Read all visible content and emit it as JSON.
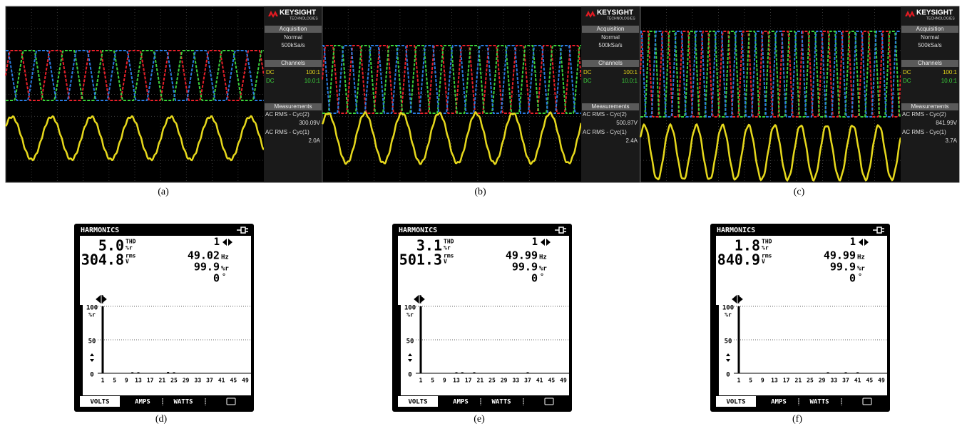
{
  "scopes": [
    {
      "brand": "KEYSIGHT",
      "brand_sub": "TECHNOLOGIES",
      "acquisition": "Acquisition",
      "mode": "Normal",
      "rate": "500kSa/s",
      "channels": "Channels",
      "ch1_coupling": "DC",
      "ch1_probe": "100:1",
      "ch2_coupling": "DC",
      "ch2_probe": "10.0:1",
      "measurements": "Measurements",
      "m1_label": "AC RMS - Cyc(2)",
      "m1_value": "300.09V",
      "m2_label": "AC RMS - Cyc(1)",
      "m2_value": "2.0A",
      "caption": "(a)"
    },
    {
      "brand": "KEYSIGHT",
      "brand_sub": "TECHNOLOGIES",
      "acquisition": "Acquisition",
      "mode": "Normal",
      "rate": "500kSa/s",
      "channels": "Channels",
      "ch1_coupling": "DC",
      "ch1_probe": "100:1",
      "ch2_coupling": "DC",
      "ch2_probe": "10.0:1",
      "measurements": "Measurements",
      "m1_label": "AC RMS - Cyc(2)",
      "m1_value": "500.87V",
      "m2_label": "AC RMS - Cyc(1)",
      "m2_value": "2.4A",
      "caption": "(b)"
    },
    {
      "brand": "KEYSIGHT",
      "brand_sub": "TECHNOLOGIES",
      "acquisition": "Acquisition",
      "mode": "Normal",
      "rate": "500kSa/s",
      "channels": "Channels",
      "ch1_coupling": "DC",
      "ch1_probe": "100:1",
      "ch2_coupling": "DC",
      "ch2_probe": "10.0:1",
      "measurements": "Measurements",
      "m1_label": "AC RMS - Cyc(2)",
      "m1_value": "841.99V",
      "m2_label": "AC RMS - Cyc(1)",
      "m2_value": "3.7A",
      "caption": "(c)"
    }
  ],
  "analyzers": [
    {
      "title": "HARMONICS",
      "thd": "5.0",
      "thd_label": "THD",
      "thd_unit": "%r",
      "rms": "304.8",
      "rms_label": "rms",
      "rms_unit": "V",
      "harmonic": "1",
      "freq": "49.02",
      "freq_unit": "Hz",
      "pct": "99.9",
      "pct_unit": "%r",
      "phase": "0",
      "phase_unit": "°",
      "y_unit": "%r",
      "ylim": [
        0,
        100
      ],
      "y_ticks": [
        0,
        50,
        100
      ],
      "xlim": [
        1,
        49
      ],
      "x_ticks": [
        1,
        5,
        9,
        13,
        17,
        21,
        25,
        29,
        33,
        37,
        41,
        45,
        49
      ],
      "bars": [
        {
          "h": 1,
          "v": 100
        },
        {
          "h": 11,
          "v": 1
        },
        {
          "h": 13,
          "v": 1
        },
        {
          "h": 23,
          "v": 2
        },
        {
          "h": 25,
          "v": 1
        }
      ],
      "tabs": [
        "VOLTS",
        "AMPS",
        "WATTS"
      ],
      "caption": "(d)"
    },
    {
      "title": "HARMONICS",
      "thd": "3.1",
      "thd_label": "THD",
      "thd_unit": "%r",
      "rms": "501.3",
      "rms_label": "rms",
      "rms_unit": "V",
      "harmonic": "1",
      "freq": "49.99",
      "freq_unit": "Hz",
      "pct": "99.9",
      "pct_unit": "%r",
      "phase": "0",
      "phase_unit": "°",
      "y_unit": "%r",
      "ylim": [
        0,
        100
      ],
      "y_ticks": [
        0,
        50,
        100
      ],
      "xlim": [
        1,
        49
      ],
      "x_ticks": [
        1,
        5,
        9,
        13,
        17,
        21,
        25,
        29,
        33,
        37,
        41,
        45,
        49
      ],
      "bars": [
        {
          "h": 1,
          "v": 100
        },
        {
          "h": 13,
          "v": 1.5
        },
        {
          "h": 15,
          "v": 1
        },
        {
          "h": 19,
          "v": 0.5
        },
        {
          "h": 37,
          "v": 0.5
        }
      ],
      "tabs": [
        "VOLTS",
        "AMPS",
        "WATTS"
      ],
      "caption": "(e)"
    },
    {
      "title": "HARMONICS",
      "thd": "1.8",
      "thd_label": "THD",
      "thd_unit": "%r",
      "rms": "840.9",
      "rms_label": "rms",
      "rms_unit": "V",
      "harmonic": "1",
      "freq": "49.99",
      "freq_unit": "Hz",
      "pct": "99.9",
      "pct_unit": "%r",
      "phase": "0",
      "phase_unit": "°",
      "y_unit": "%r",
      "ylim": [
        0,
        100
      ],
      "y_ticks": [
        0,
        50,
        100
      ],
      "xlim": [
        1,
        49
      ],
      "x_ticks": [
        1,
        5,
        9,
        13,
        17,
        21,
        25,
        29,
        33,
        37,
        41,
        45,
        49
      ],
      "bars": [
        {
          "h": 1,
          "v": 100
        },
        {
          "h": 31,
          "v": 0.5
        },
        {
          "h": 37,
          "v": 1
        },
        {
          "h": 41,
          "v": 0.5
        }
      ],
      "tabs": [
        "VOLTS",
        "AMPS",
        "WATTS"
      ],
      "caption": "(f)"
    }
  ]
}
